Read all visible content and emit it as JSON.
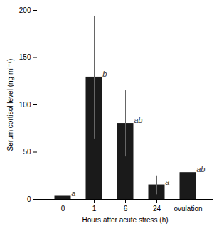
{
  "chart_data": {
    "type": "bar",
    "categories": [
      "0",
      "1",
      "6",
      "24",
      "ovulation"
    ],
    "values": [
      3.0,
      129.0,
      80.0,
      15.0,
      28.0
    ],
    "errors": [
      3.0,
      65.0,
      35.0,
      10.0,
      15.0
    ],
    "annotations": [
      "a",
      "b",
      "ab",
      "a",
      "ab"
    ],
    "color": "#1a1a1a",
    "error_color": "#666666",
    "xlabel": "Hours after acute stress (h)",
    "ylabel": "Serum cortisol level (ng ml⁻¹)",
    "ylim": [
      0,
      200
    ],
    "yticks": [
      0,
      50,
      100,
      150,
      200
    ],
    "grid": false
  }
}
